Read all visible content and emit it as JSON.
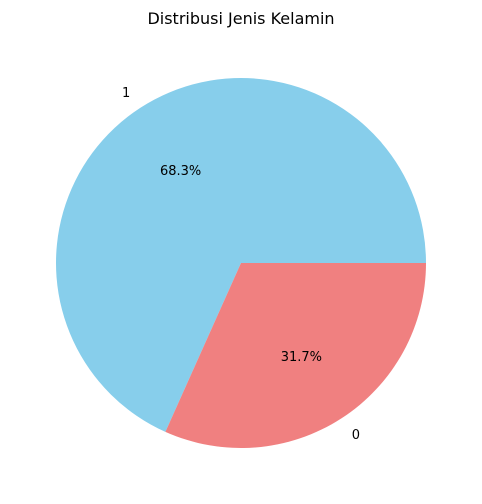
{
  "chart_data": {
    "type": "pie",
    "title": "Distribusi Jenis Kelamin",
    "slices": [
      {
        "label": "1",
        "value": 68.3,
        "pct_label": "68.3%",
        "color": "#87CEEB"
      },
      {
        "label": "0",
        "value": 31.7,
        "pct_label": "31.7%",
        "color": "#F08080"
      }
    ],
    "start_angle_deg": 0,
    "direction": "counterclockwise"
  }
}
